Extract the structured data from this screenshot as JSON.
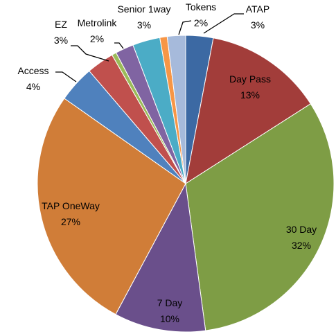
{
  "chart_data": {
    "type": "pie",
    "categories": [
      "ATAP",
      "Day Pass",
      "30 Day",
      "7 Day",
      "TAP OneWay",
      "Access",
      "EZ",
      null,
      "Metrolink",
      "Senior 1way",
      null,
      "Tokens"
    ],
    "values": [
      3,
      13,
      32,
      10,
      27,
      4,
      3,
      0.5,
      2,
      3,
      0.8,
      2
    ],
    "value_labels": [
      "3%",
      "13%",
      "32%",
      "10%",
      "27%",
      "4%",
      "3%",
      null,
      "2%",
      "3%",
      null,
      "2%"
    ],
    "colors": [
      "#3c69a3",
      "#a23d3a",
      "#7e9d45",
      "#6a4f8b",
      "#d07d38",
      "#4f81bd",
      "#c0504d",
      "#9bbb59",
      "#8064a2",
      "#4bacc6",
      "#f79646",
      "#a6badb"
    ]
  }
}
